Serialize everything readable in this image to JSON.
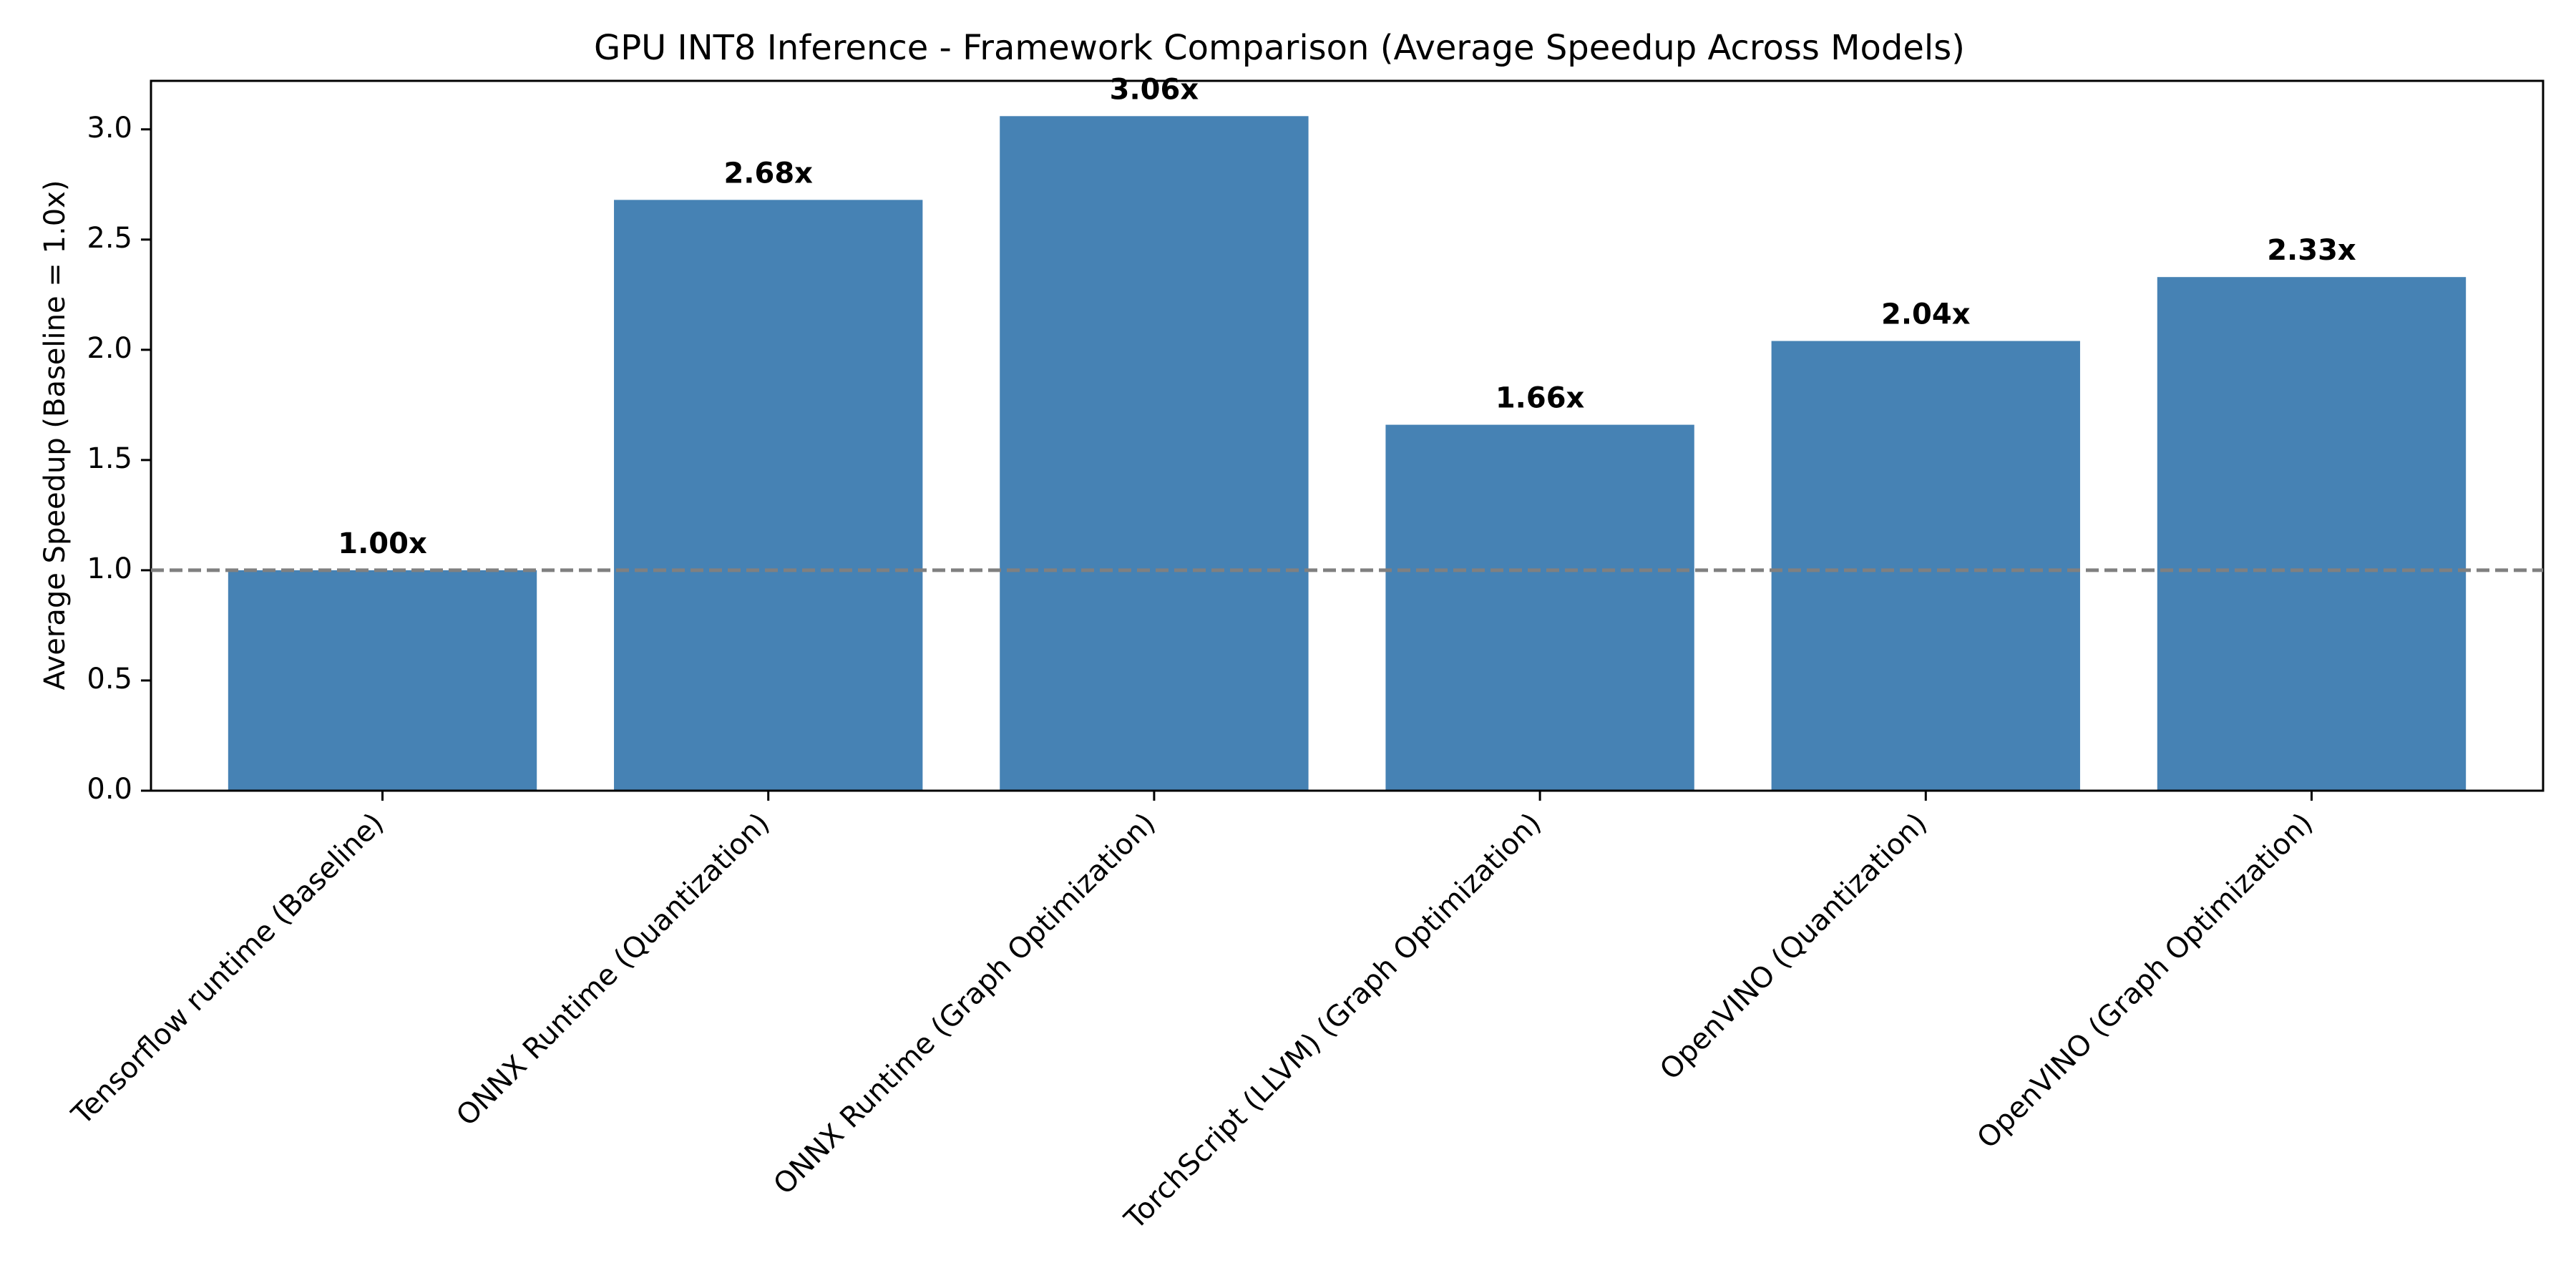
{
  "chart_data": {
    "type": "bar",
    "title": "GPU INT8 Inference - Framework Comparison (Average Speedup Across Models)",
    "xlabel": "",
    "ylabel": "Average Speedup (Baseline = 1.0x)",
    "categories": [
      "Tensorflow runtime (Baseline)",
      "ONNX Runtime (Quantization)",
      "ONNX Runtime (Graph Optimization)",
      "TorchScript (LLVM) (Graph Optimization)",
      "OpenVINO (Quantization)",
      "OpenVINO (Graph Optimization)"
    ],
    "values": [
      1.0,
      2.68,
      3.06,
      1.66,
      2.04,
      2.33
    ],
    "data_labels": [
      "1.00x",
      "2.68x",
      "3.06x",
      "1.66x",
      "2.04x",
      "2.33x"
    ],
    "ylim": [
      0,
      3.22
    ],
    "yticks": [
      0.0,
      0.5,
      1.0,
      1.5,
      2.0,
      2.5,
      3.0
    ],
    "ytick_labels": [
      "0.0",
      "0.5",
      "1.0",
      "1.5",
      "2.0",
      "2.5",
      "3.0"
    ],
    "reference_line": {
      "value": 1.0,
      "style": "dashed",
      "color": "#808080"
    },
    "grid": false,
    "legend": "none",
    "colors": {
      "bar": "#4682b4",
      "axis": "#000000",
      "text": "#000000"
    }
  }
}
